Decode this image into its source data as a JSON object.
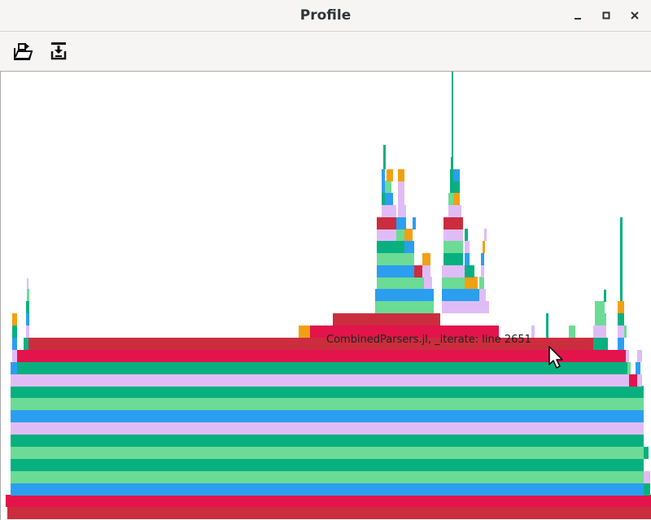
{
  "window": {
    "title": "Profile",
    "minimize_icon": "minimize-icon",
    "maximize_icon": "maximize-icon",
    "close_icon": "close-icon"
  },
  "toolbar": {
    "open_icon": "open-folder-icon",
    "save_icon": "save-icon"
  },
  "flamegraph": {
    "tooltip": "CombinedParsers.jl, _iterate: line 2651",
    "colors": {
      "red": "#cb2d3e",
      "crimson": "#e2144b",
      "teal": "#08b080",
      "mint": "#6cdb95",
      "blue": "#2b9ef0",
      "lilac": "#e0bcf6",
      "orange": "#f2a013"
    }
  }
}
